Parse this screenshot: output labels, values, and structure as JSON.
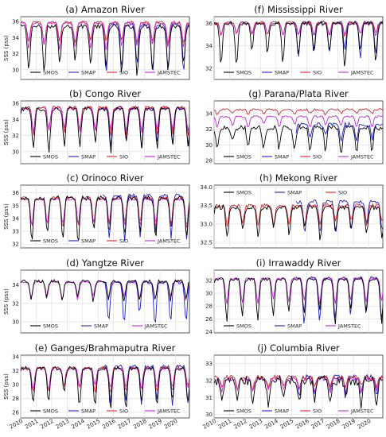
{
  "colors": {
    "SMOS": "#000000",
    "SMAP": "#1f1fcc",
    "SIO": "#e0242a",
    "JAMSTEC": "#c02bd4"
  },
  "x_ticks": [
    "2010",
    "2011",
    "2012",
    "2013",
    "2014",
    "2015",
    "2016",
    "2017",
    "2018",
    "2019",
    "2020"
  ],
  "chart_data": [
    {
      "type": "line",
      "panel": 0,
      "title": "(a) Amazon River",
      "ylabel": "SSS (pss)",
      "xlim": [
        2010,
        2020.9
      ],
      "ylim": [
        28.8,
        36.6
      ],
      "yticks": [
        30,
        32,
        34,
        36
      ],
      "legend": [
        "SMOS",
        "SMAP",
        "SIO",
        "JAMSTEC"
      ],
      "legend_position": "bottom",
      "series": [
        {
          "name": "SMOS",
          "start": 2010.0,
          "end": 2020.9,
          "base": 35.4,
          "min": 30.2,
          "phase": 0.52,
          "noise": 0.45,
          "amp_var": 0.25
        },
        {
          "name": "SMAP",
          "start": 2015.3,
          "end": 2020.9,
          "base": 35.6,
          "min": 30.0,
          "phase": 0.52,
          "noise": 0.3,
          "amp_var": 0.2
        },
        {
          "name": "SIO",
          "start": 2010.0,
          "end": 2020.9,
          "base": 35.9,
          "min": 33.5,
          "phase": 0.52,
          "noise": 0.25,
          "amp_var": 0.15
        },
        {
          "name": "JAMSTEC",
          "start": 2010.0,
          "end": 2020.9,
          "base": 35.8,
          "min": 32.8,
          "phase": 0.52,
          "noise": 0.2,
          "amp_var": 0.15
        }
      ]
    },
    {
      "type": "line",
      "panel": 1,
      "title": "(b) Congo River",
      "ylabel": "SSS (pss)",
      "xlim": [
        2010,
        2020.9
      ],
      "ylim": [
        28.5,
        36.3
      ],
      "yticks": [
        30,
        32,
        34,
        36
      ],
      "legend": [
        "SMOS",
        "SMAP",
        "SIO",
        "JAMSTEC"
      ],
      "legend_position": "bottom",
      "series": [
        {
          "name": "SMOS",
          "start": 2010.0,
          "end": 2020.9,
          "base": 35.3,
          "min": 30.5,
          "phase": 0.82,
          "noise": 0.4,
          "amp_var": 0.2
        },
        {
          "name": "SMAP",
          "start": 2015.3,
          "end": 2020.9,
          "base": 35.4,
          "min": 30.8,
          "phase": 0.82,
          "noise": 0.3,
          "amp_var": 0.15
        },
        {
          "name": "SIO",
          "start": 2010.0,
          "end": 2020.9,
          "base": 35.5,
          "min": 32.3,
          "phase": 0.82,
          "noise": 0.3,
          "amp_var": 0.15
        },
        {
          "name": "JAMSTEC",
          "start": 2010.0,
          "end": 2020.9,
          "base": 35.4,
          "min": 32.6,
          "phase": 0.82,
          "noise": 0.2,
          "amp_var": 0.12
        }
      ]
    },
    {
      "type": "line",
      "panel": 2,
      "title": "(c) Orinoco River",
      "ylabel": "SSS (pss)",
      "xlim": [
        2010,
        2020.9
      ],
      "ylim": [
        31.7,
        36.6
      ],
      "yticks": [
        32,
        33,
        34,
        35,
        36
      ],
      "legend": [
        "SMOS",
        "SMAP",
        "SIO",
        "JAMSTEC"
      ],
      "legend_position": "bottom",
      "series": [
        {
          "name": "SMOS",
          "start": 2010.0,
          "end": 2020.9,
          "base": 35.6,
          "min": 32.5,
          "phase": 0.72,
          "noise": 0.3,
          "amp_var": 0.2
        },
        {
          "name": "SMAP",
          "start": 2015.3,
          "end": 2020.9,
          "base": 35.8,
          "min": 32.6,
          "phase": 0.72,
          "noise": 0.2,
          "amp_var": 0.15
        },
        {
          "name": "SIO",
          "start": 2010.0,
          "end": 2020.9,
          "base": 35.6,
          "min": 33.4,
          "phase": 0.72,
          "noise": 0.2,
          "amp_var": 0.15
        },
        {
          "name": "JAMSTEC",
          "start": 2010.0,
          "end": 2020.9,
          "base": 35.5,
          "min": 33.5,
          "phase": 0.72,
          "noise": 0.15,
          "amp_var": 0.12
        }
      ]
    },
    {
      "type": "line",
      "panel": 3,
      "title": "(d) Yangtze River",
      "ylabel": "SSS (pss)",
      "xlim": [
        2010,
        2020.9
      ],
      "ylim": [
        28.8,
        35.6
      ],
      "yticks": [
        30,
        32,
        34
      ],
      "legend": [
        "SMOS",
        "SMAP",
        "JAMSTEC"
      ],
      "legend_position": "bottom",
      "series": [
        {
          "name": "SMOS",
          "start": 2010.0,
          "end": 2020.9,
          "base": 34.4,
          "min": 32.6,
          "phase": 0.68,
          "noise": 0.3,
          "amp_var": 0.3
        },
        {
          "name": "SMAP",
          "start": 2015.3,
          "end": 2020.9,
          "base": 34.3,
          "min": 30.3,
          "phase": 0.68,
          "noise": 0.3,
          "amp_var": 0.25
        },
        {
          "name": "JAMSTEC",
          "start": 2010.0,
          "end": 2020.9,
          "base": 34.3,
          "min": 32.6,
          "phase": 0.68,
          "noise": 0.15,
          "amp_var": 0.15
        }
      ]
    },
    {
      "type": "line",
      "panel": 4,
      "title": "(e) Ganges/Brahmaputra River",
      "ylabel": "SSS (pss)",
      "xlim": [
        2010,
        2020.9
      ],
      "ylim": [
        25.2,
        34.2
      ],
      "yticks": [
        26,
        28,
        30,
        32,
        34
      ],
      "legend": [
        "SMOS",
        "SMAP",
        "SIO",
        "JAMSTEC"
      ],
      "legend_position": "bottom",
      "series": [
        {
          "name": "SMOS",
          "start": 2010.0,
          "end": 2020.9,
          "base": 32.3,
          "min": 27.5,
          "phase": 0.8,
          "noise": 0.45,
          "amp_var": 0.25
        },
        {
          "name": "SMAP",
          "start": 2015.3,
          "end": 2020.9,
          "base": 32.6,
          "min": 27.6,
          "phase": 0.8,
          "noise": 0.35,
          "amp_var": 0.2
        },
        {
          "name": "SIO",
          "start": 2010.0,
          "end": 2020.9,
          "base": 32.4,
          "min": 29.2,
          "phase": 0.8,
          "noise": 0.3,
          "amp_var": 0.15
        },
        {
          "name": "JAMSTEC",
          "start": 2010.0,
          "end": 2020.9,
          "base": 32.3,
          "min": 29.5,
          "phase": 0.8,
          "noise": 0.2,
          "amp_var": 0.12
        }
      ]
    },
    {
      "type": "line",
      "panel": 5,
      "title": "(f) Mississippi River",
      "ylabel": "",
      "xlim": [
        2010,
        2020.9
      ],
      "ylim": [
        31.0,
        36.6
      ],
      "yticks": [
        32,
        34,
        36
      ],
      "legend": [
        "SMOS",
        "SMAP",
        "SIO",
        "JAMSTEC"
      ],
      "legend_position": "bottom",
      "series": [
        {
          "name": "SMOS",
          "start": 2010.0,
          "end": 2020.9,
          "base": 36.0,
          "min": 32.8,
          "phase": 0.45,
          "noise": 0.3,
          "amp_var": 0.3
        },
        {
          "name": "SMAP",
          "start": 2015.3,
          "end": 2020.9,
          "base": 36.1,
          "min": 33.3,
          "phase": 0.45,
          "noise": 0.2,
          "amp_var": 0.2
        },
        {
          "name": "SIO",
          "start": 2010.0,
          "end": 2020.9,
          "base": 36.1,
          "min": 35.0,
          "phase": 0.45,
          "noise": 0.15,
          "amp_var": 0.15
        },
        {
          "name": "JAMSTEC",
          "start": 2010.0,
          "end": 2020.9,
          "base": 36.0,
          "min": 35.0,
          "phase": 0.45,
          "noise": 0.12,
          "amp_var": 0.12
        }
      ]
    },
    {
      "type": "line",
      "panel": 6,
      "title": "(g) Parana/Plata River",
      "ylabel": "",
      "xlim": [
        2010,
        2020.9
      ],
      "ylim": [
        27.6,
        35.6
      ],
      "yticks": [
        28,
        30,
        32,
        34
      ],
      "legend": [
        "SMOS",
        "SMAP",
        "SIO",
        "JAMSTEC"
      ],
      "legend_position": "bottom",
      "series": [
        {
          "name": "SMOS",
          "start": 2010.0,
          "end": 2020.9,
          "base": 32.2,
          "min": 29.6,
          "phase": 0.2,
          "noise": 0.55,
          "amp_var": 0.3
        },
        {
          "name": "SMAP",
          "start": 2015.3,
          "end": 2020.9,
          "base": 32.6,
          "min": 30.8,
          "phase": 0.2,
          "noise": 0.45,
          "amp_var": 0.25
        },
        {
          "name": "SIO",
          "start": 2010.0,
          "end": 2020.9,
          "base": 34.5,
          "min": 33.9,
          "phase": 0.2,
          "noise": 0.2,
          "amp_var": 0.2
        },
        {
          "name": "JAMSTEC",
          "start": 2010.0,
          "end": 2020.9,
          "base": 33.6,
          "min": 32.4,
          "phase": 0.2,
          "noise": 0.2,
          "amp_var": 0.2
        }
      ]
    },
    {
      "type": "line",
      "panel": 7,
      "title": "(h) Mekong River",
      "ylabel": "",
      "xlim": [
        2010,
        2020.9
      ],
      "ylim": [
        32.35,
        34.05
      ],
      "yticks": [
        32.5,
        33.0,
        33.5,
        34.0
      ],
      "legend": [
        "SMOS",
        "SMAP",
        "SIO"
      ],
      "legend_position": "top",
      "series": [
        {
          "name": "SMOS",
          "start": 2010.0,
          "end": 2020.9,
          "base": 33.45,
          "min": 32.7,
          "phase": 0.85,
          "noise": 0.1,
          "amp_var": 0.3
        },
        {
          "name": "SMAP",
          "start": 2015.3,
          "end": 2020.9,
          "base": 33.6,
          "min": 32.85,
          "phase": 0.85,
          "noise": 0.08,
          "amp_var": 0.25
        },
        {
          "name": "SIO",
          "start": 2010.0,
          "end": 2020.9,
          "base": 33.5,
          "min": 33.0,
          "phase": 0.85,
          "noise": 0.08,
          "amp_var": 0.2
        }
      ]
    },
    {
      "type": "line",
      "panel": 8,
      "title": "(i) Irrawaddy River",
      "ylabel": "",
      "xlim": [
        2010,
        2020.9
      ],
      "ylim": [
        23.8,
        33.6
      ],
      "yticks": [
        24,
        26,
        28,
        30,
        32
      ],
      "legend": [
        "SMOS",
        "SMAP",
        "JAMSTEC"
      ],
      "legend_position": "bottom",
      "series": [
        {
          "name": "SMOS",
          "start": 2010.0,
          "end": 2020.9,
          "base": 32.2,
          "min": 26.3,
          "phase": 0.82,
          "noise": 0.35,
          "amp_var": 0.25
        },
        {
          "name": "SMAP",
          "start": 2015.3,
          "end": 2020.9,
          "base": 32.4,
          "min": 25.8,
          "phase": 0.82,
          "noise": 0.3,
          "amp_var": 0.2
        },
        {
          "name": "JAMSTEC",
          "start": 2010.0,
          "end": 2020.9,
          "base": 32.3,
          "min": 28.6,
          "phase": 0.82,
          "noise": 0.2,
          "amp_var": 0.15
        }
      ]
    },
    {
      "type": "line",
      "panel": 9,
      "title": "(j) Columbia River",
      "ylabel": "",
      "xlim": [
        2010,
        2020.9
      ],
      "ylim": [
        29.8,
        33.5
      ],
      "yticks": [
        30,
        31,
        32,
        33
      ],
      "legend": [
        "SMOS",
        "SMAP",
        "SIO",
        "JAMSTEC"
      ],
      "legend_position": "bottom",
      "series": [
        {
          "name": "SMOS",
          "start": 2010.0,
          "end": 2020.9,
          "base": 32.0,
          "min": 30.8,
          "phase": 0.5,
          "noise": 0.45,
          "amp_var": 0.3
        },
        {
          "name": "SMAP",
          "start": 2015.3,
          "end": 2020.9,
          "base": 32.2,
          "min": 31.2,
          "phase": 0.5,
          "noise": 0.25,
          "amp_var": 0.2
        },
        {
          "name": "SIO",
          "start": 2010.0,
          "end": 2020.9,
          "base": 32.2,
          "min": 31.6,
          "phase": 0.5,
          "noise": 0.2,
          "amp_var": 0.2
        },
        {
          "name": "JAMSTEC",
          "start": 2010.0,
          "end": 2020.9,
          "base": 32.1,
          "min": 31.4,
          "phase": 0.5,
          "noise": 0.15,
          "amp_var": 0.15
        }
      ]
    }
  ]
}
